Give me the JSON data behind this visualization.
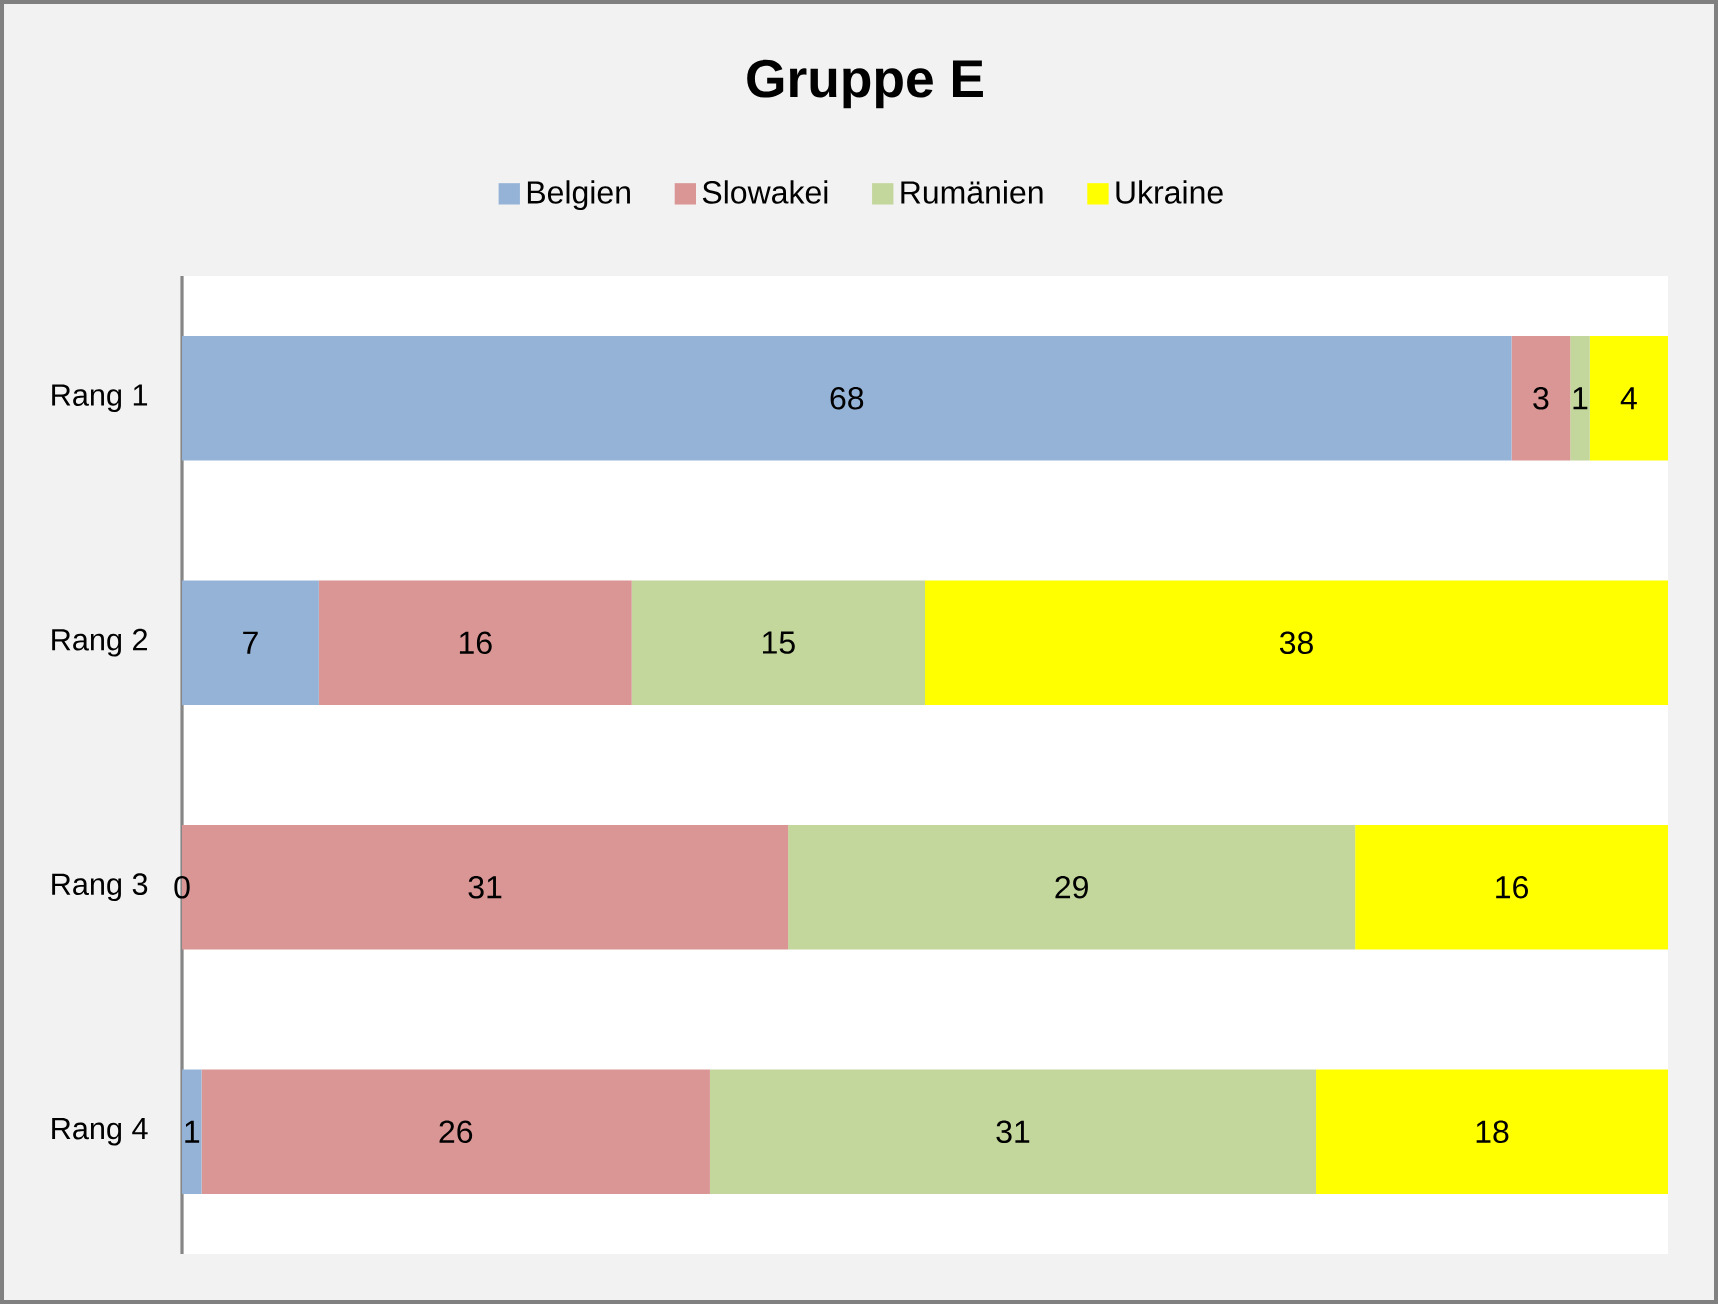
{
  "chart_data": {
    "type": "bar",
    "orientation": "horizontal",
    "stacked": true,
    "title": "Gruppe E",
    "categories": [
      "Rang 1",
      "Rang 2",
      "Rang 3",
      "Rang 4"
    ],
    "series": [
      {
        "name": "Belgien",
        "color": "#95b3d7",
        "values": [
          68,
          7,
          0,
          1
        ],
        "value_labels": [
          "68",
          "7",
          null,
          "1"
        ]
      },
      {
        "name": "Slowakei",
        "color": "#d99694",
        "values": [
          3,
          16,
          31,
          26
        ],
        "value_labels": [
          "3",
          "16",
          "31",
          "26"
        ]
      },
      {
        "name": "Rumänien",
        "color": "#c3d69b",
        "values": [
          1,
          15,
          29,
          31
        ],
        "value_labels": [
          "1",
          "15",
          "29",
          "31"
        ]
      },
      {
        "name": "Ukraine",
        "color": "#ffff00",
        "values": [
          4,
          38,
          16,
          18
        ],
        "value_labels": [
          "4",
          "38",
          "16",
          "18"
        ]
      }
    ],
    "annotations": [
      {
        "text": "0",
        "x": 0,
        "y": "Rang 3"
      }
    ],
    "legend": "top",
    "tick_labels": "y"
  }
}
